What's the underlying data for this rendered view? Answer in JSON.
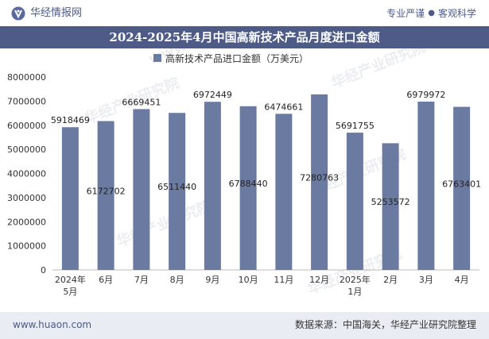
{
  "header": {
    "brand_name": "华经情报网",
    "tagline_left": "专业严谨",
    "tagline_right": "客观科学",
    "logo_icon": "huajing-logo-icon"
  },
  "title": "2024-2025年4月中国高新技术产品月度进口金额",
  "footer": {
    "website": "www.huaon.com",
    "source": "数据来源：中国海关，华经产业研究院整理"
  },
  "watermarks": [
    "华经产业研究院",
    "www.huaon.com"
  ],
  "colors": {
    "bar": "#6b7aa1",
    "title_bg": "#4d5b86",
    "footer_bg": "#e9ecf3",
    "accent": "#4a5a8a"
  },
  "chart_data": {
    "type": "bar",
    "categories": [
      [
        "2024年",
        "5月"
      ],
      [
        "6月"
      ],
      [
        "7月"
      ],
      [
        "8月"
      ],
      [
        "9月"
      ],
      [
        "10月"
      ],
      [
        "11月"
      ],
      [
        "12月"
      ],
      [
        "2025年",
        "1月"
      ],
      [
        "2月"
      ],
      [
        "3月"
      ],
      [
        "4月"
      ]
    ],
    "series": [
      {
        "name": "高新技术产品进口金额（万美元）",
        "values": [
          5918469,
          6172702,
          6669451,
          6511440,
          6972449,
          6788440,
          6474661,
          7280763,
          5691755,
          5253572,
          6979972,
          6763401
        ]
      }
    ],
    "value_labels": [
      "5918469",
      "6172702",
      "6669451",
      "6511440",
      "6972449",
      "6788440",
      "6474661",
      "7280763",
      "5691755",
      "5253572",
      "6979972",
      "6763401"
    ],
    "label_position": [
      "top",
      "inside",
      "top",
      "inside",
      "top",
      "inside",
      "top",
      "inside",
      "top",
      "inside",
      "top",
      "inside"
    ],
    "ylim": [
      0,
      8000000
    ],
    "yticks": [
      "0",
      "1000000",
      "2000000",
      "3000000",
      "4000000",
      "5000000",
      "6000000",
      "7000000",
      "8000000"
    ],
    "legend_position": "top-center",
    "grid": false
  }
}
